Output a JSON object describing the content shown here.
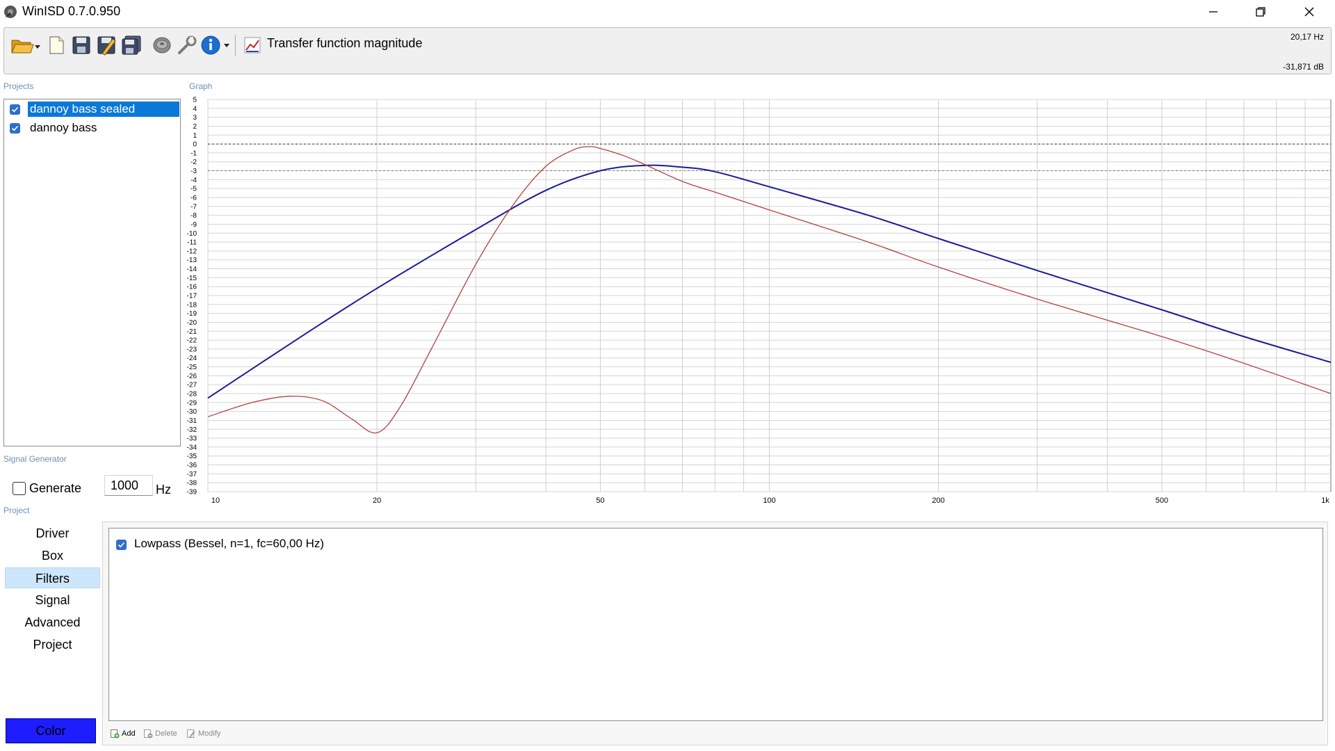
{
  "window": {
    "title": "WinISD 0.7.0.950"
  },
  "toolbar": {
    "graph_mode": "Transfer function magnitude",
    "cursor_freq": "20,17 Hz",
    "cursor_level": "-31,871 dB",
    "icons": [
      "open-folder-icon",
      "new-document-icon",
      "save-icon",
      "save-as-icon",
      "save-all-icon",
      "speaker-icon",
      "wrench-icon",
      "info-icon",
      "graph-icon"
    ]
  },
  "sections": {
    "projects": "Projects",
    "graph": "Graph",
    "signal_generator": "Signal Generator",
    "project": "Project"
  },
  "projects": [
    {
      "name": "dannoy bass sealed",
      "checked": true,
      "selected": true
    },
    {
      "name": "dannoy bass",
      "checked": true,
      "selected": false
    }
  ],
  "signal_generator": {
    "generate_label": "Generate",
    "generate_checked": false,
    "frequency": "1000",
    "unit": "Hz"
  },
  "project_nav": {
    "items": [
      "Driver",
      "Box",
      "Filters",
      "Signal",
      "Advanced",
      "Project"
    ],
    "active": "Filters",
    "color_button": "Color",
    "color_value": "#1d1dff"
  },
  "filters": {
    "items": [
      {
        "label": "Lowpass (Bessel, n=1, fc=60,00 Hz)",
        "checked": true
      }
    ],
    "add_label": "Add",
    "delete_label": "Delete",
    "modify_label": "Modify"
  },
  "chart_data": {
    "type": "line",
    "x_scale": "log",
    "xlim": [
      10,
      1000
    ],
    "ylim": [
      -39,
      5
    ],
    "x_ticks": [
      10,
      20,
      50,
      100,
      200,
      500,
      1000
    ],
    "x_tick_labels": [
      "10",
      "20",
      "50",
      "100",
      "200",
      "500",
      "1k"
    ],
    "y_ticks": [
      5,
      4,
      3,
      2,
      1,
      0,
      -1,
      -2,
      -3,
      -4,
      -5,
      -6,
      -7,
      -8,
      -9,
      -10,
      -11,
      -12,
      -13,
      -14,
      -15,
      -16,
      -17,
      -18,
      -19,
      -20,
      -21,
      -22,
      -23,
      -24,
      -25,
      -26,
      -27,
      -28,
      -29,
      -30,
      -31,
      -32,
      -33,
      -34,
      -35,
      -36,
      -37,
      -38,
      -39
    ],
    "reference_lines": [
      0,
      -3
    ],
    "grid": true,
    "series": [
      {
        "color": "#1a1a9c",
        "x": [
          10,
          15,
          20,
          30,
          40,
          50,
          60,
          70,
          80,
          100,
          150,
          200,
          300,
          500,
          700,
          1000
        ],
        "y": [
          -28.5,
          -21.2,
          -16.2,
          -9.6,
          -5.2,
          -3.0,
          -2.4,
          -2.6,
          -3.1,
          -4.8,
          -8.0,
          -10.6,
          -14.2,
          -18.6,
          -21.6,
          -24.5
        ]
      },
      {
        "color": "#b0413e",
        "x": [
          10,
          12,
          14,
          16,
          18,
          20,
          22,
          25,
          30,
          35,
          40,
          45,
          48,
          50,
          55,
          60,
          70,
          80,
          100,
          150,
          200,
          300,
          500,
          700,
          1000
        ],
        "y": [
          -30.6,
          -29.0,
          -28.3,
          -28.8,
          -30.8,
          -32.4,
          -29.5,
          -23.0,
          -13.5,
          -6.8,
          -2.5,
          -0.6,
          -0.3,
          -0.5,
          -1.3,
          -2.3,
          -4.2,
          -5.4,
          -7.4,
          -11.0,
          -13.8,
          -17.4,
          -21.6,
          -24.6,
          -28.0
        ]
      }
    ]
  }
}
